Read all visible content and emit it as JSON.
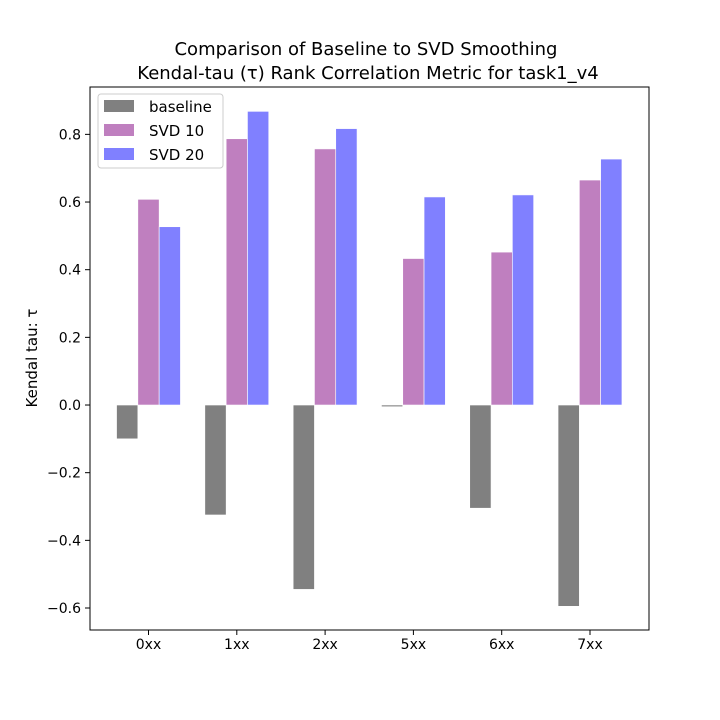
{
  "chart_data": {
    "type": "bar",
    "title_line1": "Comparison of Baseline to SVD Smoothing",
    "title_line2": "Kendal-tau (τ) Rank Correlation Metric for task1_v4",
    "xlabel": "",
    "ylabel": "Kendal tau: τ",
    "ylim": [
      -0.665,
      0.94
    ],
    "yticks": [
      -0.6,
      -0.4,
      -0.2,
      0.0,
      0.2,
      0.4,
      0.6,
      0.8
    ],
    "ytick_labels": [
      "−0.6",
      "−0.4",
      "−0.2",
      "0.0",
      "0.2",
      "0.4",
      "0.6",
      "0.8"
    ],
    "categories": [
      "0xx",
      "1xx",
      "2xx",
      "5xx",
      "6xx",
      "7xx"
    ],
    "grid": false,
    "legend_position": "top-left",
    "series": [
      {
        "name": "baseline",
        "color": "#808080",
        "values": [
          -0.1,
          -0.325,
          -0.545,
          -0.005,
          -0.305,
          -0.595
        ]
      },
      {
        "name": "SVD 10",
        "color": "#bf7fbf",
        "values": [
          0.608,
          0.787,
          0.757,
          0.433,
          0.452,
          0.665
        ]
      },
      {
        "name": "SVD 20",
        "color": "#8080ff",
        "values": [
          0.527,
          0.868,
          0.817,
          0.615,
          0.621,
          0.727
        ]
      }
    ]
  }
}
